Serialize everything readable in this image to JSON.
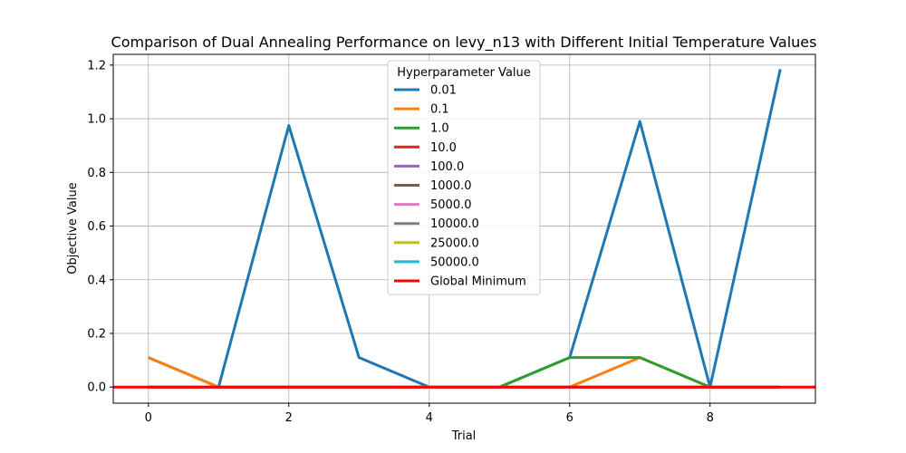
{
  "chart_data": {
    "type": "line",
    "title": "Comparison of Dual Annealing Performance on levy_n13 with Different Initial Temperature Values",
    "xlabel": "Trial",
    "ylabel": "Objective Value",
    "xlim": [
      -0.5,
      9.5
    ],
    "ylim": [
      -0.06,
      1.24
    ],
    "xticks": [
      0,
      2,
      4,
      6,
      8
    ],
    "yticks": [
      0.0,
      0.2,
      0.4,
      0.6,
      0.8,
      1.0,
      1.2
    ],
    "xtick_labels": [
      "0",
      "2",
      "4",
      "6",
      "8"
    ],
    "ytick_labels": [
      "0.0",
      "0.2",
      "0.4",
      "0.6",
      "0.8",
      "1.0",
      "1.2"
    ],
    "grid": true,
    "legend_title": "Hyperparameter Value",
    "legend_position": "top-center",
    "x": [
      0,
      1,
      2,
      3,
      4,
      5,
      6,
      7,
      8,
      9
    ],
    "series": [
      {
        "name": "0.01",
        "color": "#1f77b4",
        "values": [
          0.11,
          0.0,
          0.975,
          0.11,
          0.0,
          0.0,
          0.11,
          0.99,
          0.0,
          1.185
        ]
      },
      {
        "name": "0.1",
        "color": "#ff7f0e",
        "values": [
          0.11,
          0.0,
          0.0,
          0.0,
          0.0,
          0.0,
          0.0,
          0.11,
          0.0,
          0.0
        ]
      },
      {
        "name": "1.0",
        "color": "#2ca02c",
        "values": [
          0.0,
          0.0,
          0.0,
          0.0,
          0.0,
          0.0,
          0.11,
          0.11,
          0.0,
          0.0
        ]
      },
      {
        "name": "10.0",
        "color": "#d62728",
        "values": [
          0.0,
          0.0,
          0.0,
          0.0,
          0.0,
          0.0,
          0.0,
          0.0,
          0.0,
          0.0
        ]
      },
      {
        "name": "100.0",
        "color": "#9467bd",
        "values": [
          0.0,
          0.0,
          0.0,
          0.0,
          0.0,
          0.0,
          0.0,
          0.0,
          0.0,
          0.0
        ]
      },
      {
        "name": "1000.0",
        "color": "#8c564b",
        "values": [
          0.0,
          0.0,
          0.0,
          0.0,
          0.0,
          0.0,
          0.0,
          0.0,
          0.0,
          0.0
        ]
      },
      {
        "name": "5000.0",
        "color": "#e377c2",
        "values": [
          0.0,
          0.0,
          0.0,
          0.0,
          0.0,
          0.0,
          0.0,
          0.0,
          0.0,
          0.0
        ]
      },
      {
        "name": "10000.0",
        "color": "#7f7f7f",
        "values": [
          0.0,
          0.0,
          0.0,
          0.0,
          0.0,
          0.0,
          0.0,
          0.0,
          0.0,
          0.0
        ]
      },
      {
        "name": "25000.0",
        "color": "#bcbd22",
        "values": [
          0.0,
          0.0,
          0.0,
          0.0,
          0.0,
          0.0,
          0.0,
          0.0,
          0.0,
          0.0
        ]
      },
      {
        "name": "50000.0",
        "color": "#17becf",
        "values": [
          0.0,
          0.0,
          0.0,
          0.0,
          0.0,
          0.0,
          0.0,
          0.0,
          0.0,
          0.0
        ]
      }
    ],
    "reference_line": {
      "name": "Global Minimum",
      "color": "#ff0000",
      "y": 0.0
    }
  }
}
